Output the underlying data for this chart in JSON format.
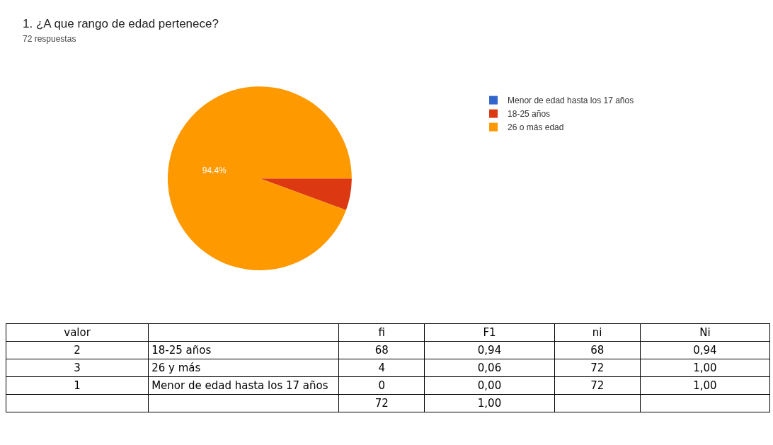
{
  "chart_data": [
    {
      "type": "pie",
      "title": "1.    ¿A que rango de edad pertenece?",
      "subtitle": "72 respuestas",
      "categories": [
        "Menor de edad hasta los 17 años",
        "18-25 años",
        "26 o más edad"
      ],
      "values": [
        0,
        5.6,
        94.4
      ],
      "colors": [
        "#3366cc",
        "#dc3912",
        "#ff9900"
      ],
      "value_labels": [
        null,
        null,
        "94.4%"
      ],
      "legend": "top right"
    },
    {
      "type": "other",
      "categories": [
        "valor",
        null,
        "fi",
        "F1",
        "ni",
        "Ni"
      ],
      "annotations": [
        "2",
        "18-25 años",
        "68",
        "0,94",
        "68",
        "0,94",
        "3",
        "26 y más",
        "4",
        "0,06",
        "72",
        "1,00",
        "1",
        "Menor de edad hasta los 17 años",
        "0",
        "0,00",
        "72",
        "1,00",
        null,
        null,
        "72",
        "1,00",
        null,
        null
      ]
    }
  ]
}
